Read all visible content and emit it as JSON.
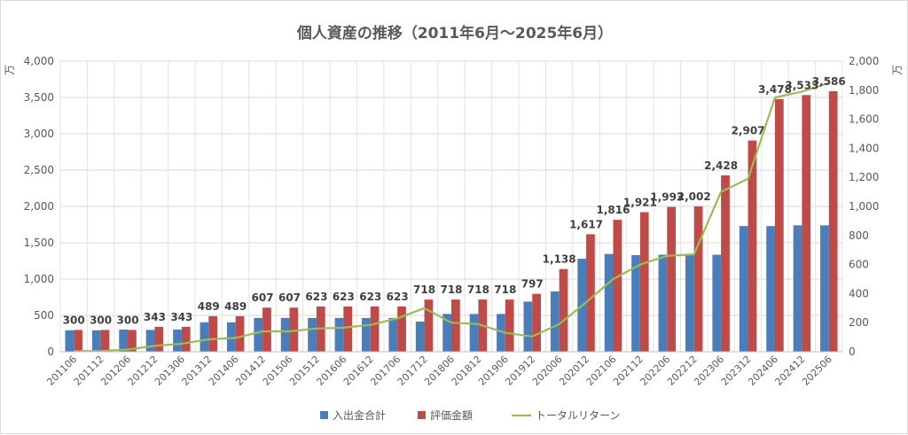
{
  "chart_data": {
    "type": "bar",
    "title": "個人資産の推移（2011年6月～2025年6月）",
    "categories": [
      "201106",
      "201112",
      "201206",
      "201212",
      "201306",
      "201312",
      "201406",
      "201412",
      "201506",
      "201512",
      "201606",
      "201612",
      "201706",
      "201712",
      "201806",
      "201812",
      "201906",
      "201912",
      "202006",
      "202012",
      "202106",
      "202112",
      "202206",
      "202212",
      "202306",
      "202312",
      "202406",
      "202412",
      "202506"
    ],
    "y_left": {
      "unit": "万",
      "min": 0,
      "max": 4000,
      "step": 500
    },
    "y_right": {
      "unit": "万",
      "min": 0,
      "max": 2000,
      "step": 200
    },
    "grid": true,
    "legend_position": "bottom",
    "series": [
      {
        "name": "入出金合計",
        "type": "bar",
        "axis": "left",
        "color": "#4a7ebb",
        "values": [
          295,
          295,
          305,
          300,
          305,
          405,
          405,
          465,
          465,
          465,
          465,
          465,
          465,
          415,
          520,
          520,
          520,
          690,
          830,
          1280,
          1345,
          1330,
          1335,
          1335,
          1335,
          1730,
          1730,
          1740,
          1740
        ]
      },
      {
        "name": "評価金額",
        "type": "bar",
        "axis": "left",
        "color": "#be4b48",
        "values": [
          300,
          300,
          300,
          343,
          343,
          489,
          489,
          607,
          607,
          623,
          623,
          623,
          623,
          718,
          718,
          718,
          718,
          797,
          1138,
          1617,
          1816,
          1921,
          1993,
          2002,
          2428,
          2907,
          3478,
          3533,
          3586
        ],
        "labels": [
          "300",
          "300",
          "300",
          "343",
          "343",
          "489",
          "489",
          "607",
          "607",
          "623",
          "623",
          "623",
          "623",
          "718",
          "718",
          "718",
          "718",
          "797",
          "1,138",
          "1,617",
          "1,816",
          "1,921",
          "1,993",
          "2,002",
          "2,428",
          "2,907",
          "3,478",
          "3,533",
          "3,586"
        ]
      },
      {
        "name": "トータルリターン",
        "type": "line",
        "axis": "right",
        "color": "#9bbb59",
        "values": [
          5,
          5,
          15,
          40,
          55,
          85,
          95,
          140,
          140,
          160,
          165,
          185,
          230,
          300,
          200,
          190,
          130,
          105,
          190,
          340,
          500,
          600,
          660,
          670,
          1100,
          1190,
          1750,
          1790,
          1850
        ]
      }
    ]
  }
}
